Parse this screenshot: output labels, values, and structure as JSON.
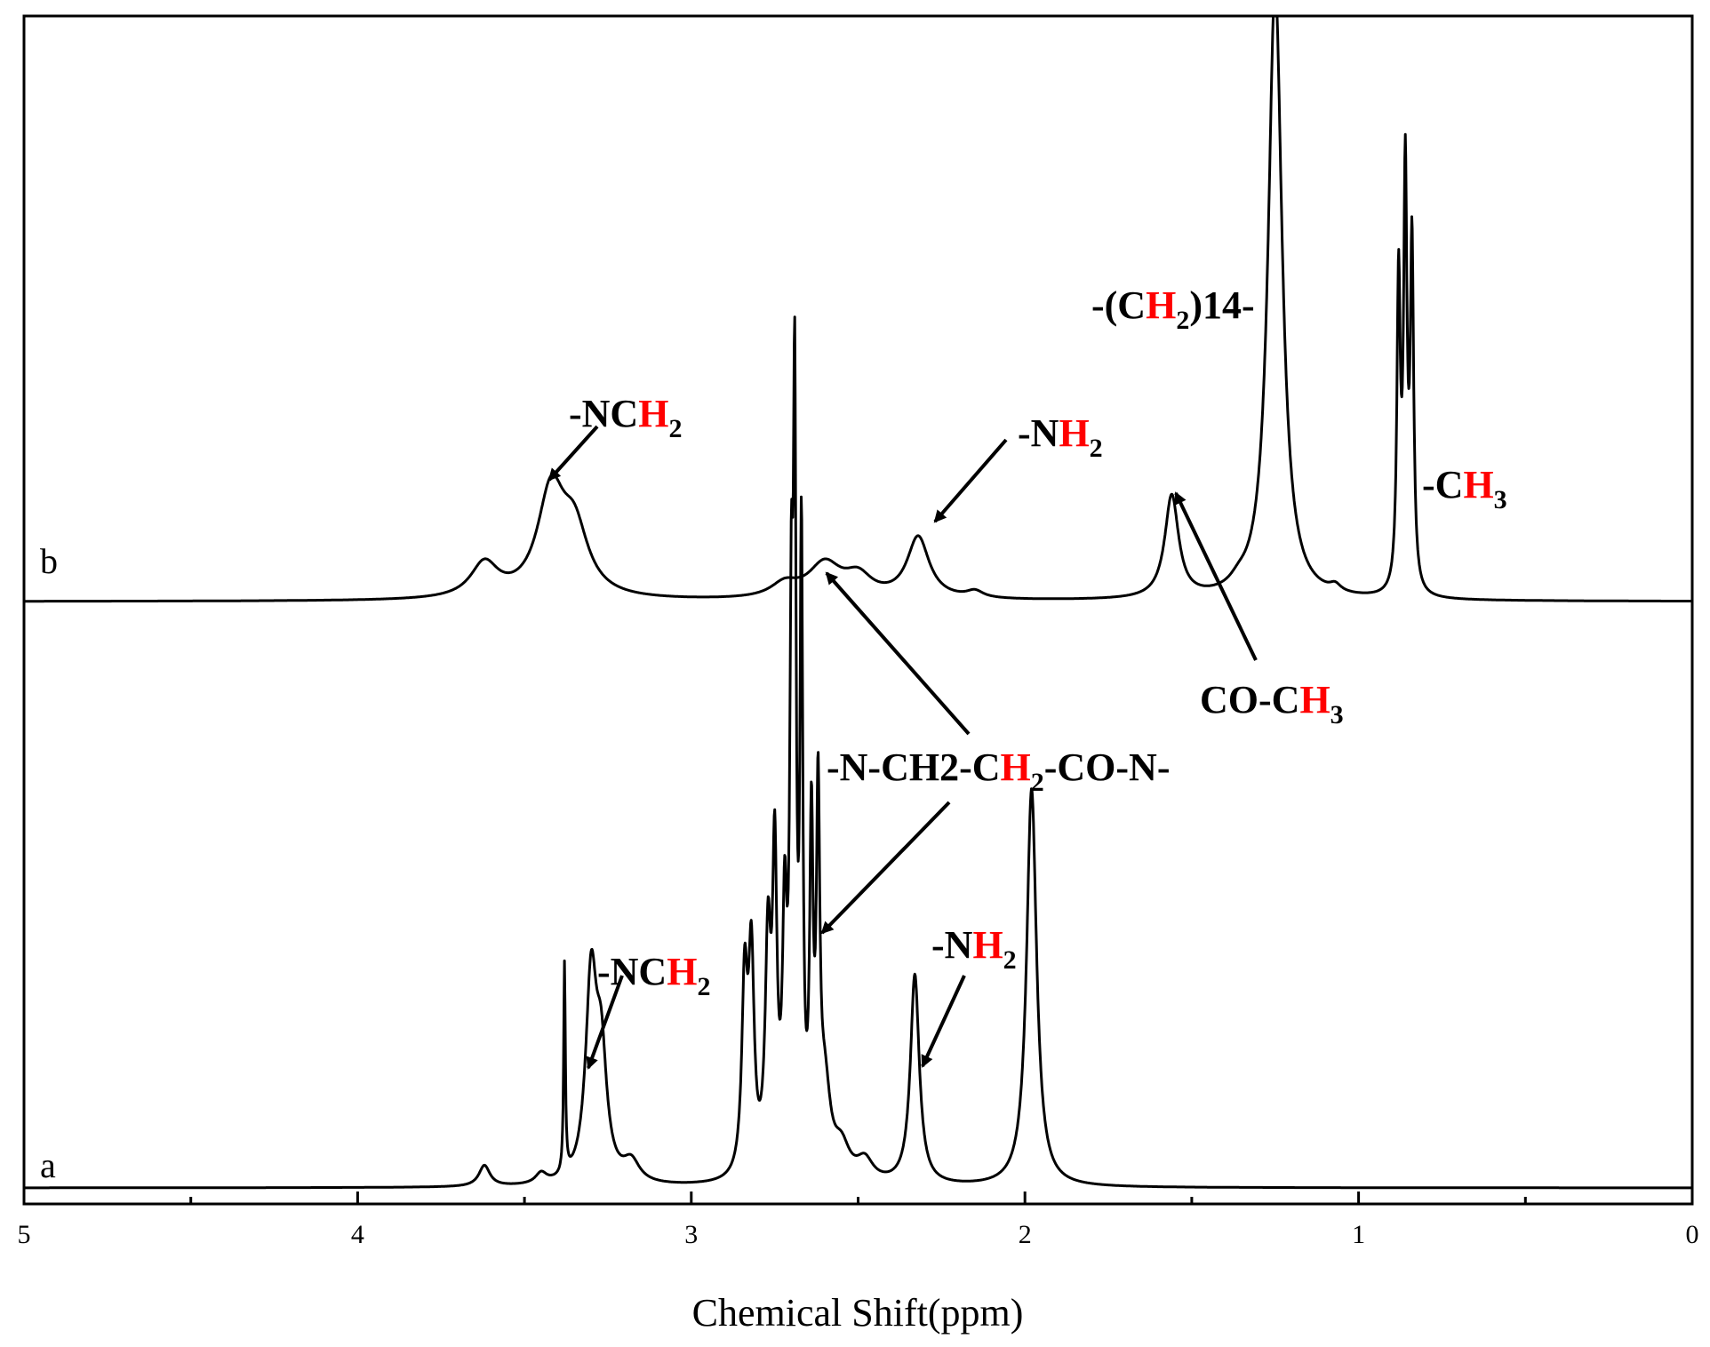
{
  "chart_data": {
    "type": "line",
    "title": "",
    "xlabel": "Chemical Shift(ppm)",
    "ylabel": "",
    "xlim": [
      5,
      0
    ],
    "x_ticks": [
      "5",
      "4",
      "3",
      "2",
      "1",
      "0"
    ],
    "grid": false,
    "legend": "none",
    "series": [
      {
        "name": "a",
        "baseline_ppm_region": [
          5,
          0
        ],
        "peaks": [
          {
            "ppm": 3.62,
            "height": 0.02,
            "width": 0.02
          },
          {
            "ppm": 3.45,
            "height": 0.01,
            "width": 0.02
          },
          {
            "ppm": 3.38,
            "height": 0.2,
            "width": 0.003
          },
          {
            "ppm": 3.3,
            "height": 0.19,
            "width": 0.02
          },
          {
            "ppm": 3.27,
            "height": 0.11,
            "width": 0.02
          },
          {
            "ppm": 3.18,
            "height": 0.02,
            "width": 0.03
          },
          {
            "ppm": 2.84,
            "height": 0.18,
            "width": 0.01
          },
          {
            "ppm": 2.82,
            "height": 0.2,
            "width": 0.01
          },
          {
            "ppm": 2.77,
            "height": 0.21,
            "width": 0.01
          },
          {
            "ppm": 2.75,
            "height": 0.28,
            "width": 0.008
          },
          {
            "ppm": 2.72,
            "height": 0.22,
            "width": 0.008
          },
          {
            "ppm": 2.7,
            "height": 0.45,
            "width": 0.006
          },
          {
            "ppm": 2.69,
            "height": 0.64,
            "width": 0.005
          },
          {
            "ppm": 2.67,
            "height": 0.57,
            "width": 0.005
          },
          {
            "ppm": 2.64,
            "height": 0.31,
            "width": 0.006
          },
          {
            "ppm": 2.62,
            "height": 0.33,
            "width": 0.006
          },
          {
            "ppm": 2.6,
            "height": 0.08,
            "width": 0.02
          },
          {
            "ppm": 2.55,
            "height": 0.03,
            "width": 0.03
          },
          {
            "ppm": 2.48,
            "height": 0.02,
            "width": 0.03
          },
          {
            "ppm": 2.33,
            "height": 0.2,
            "width": 0.016
          },
          {
            "ppm": 1.98,
            "height": 0.38,
            "width": 0.018
          }
        ]
      },
      {
        "name": "b",
        "peaks": [
          {
            "ppm": 3.62,
            "height": 0.05,
            "width": 0.05
          },
          {
            "ppm": 3.42,
            "height": 0.15,
            "width": 0.05
          },
          {
            "ppm": 3.35,
            "height": 0.09,
            "width": 0.05
          },
          {
            "ppm": 2.72,
            "height": 0.02,
            "width": 0.05
          },
          {
            "ppm": 2.6,
            "height": 0.05,
            "width": 0.06
          },
          {
            "ppm": 2.5,
            "height": 0.03,
            "width": 0.05
          },
          {
            "ppm": 2.32,
            "height": 0.09,
            "width": 0.04
          },
          {
            "ppm": 2.15,
            "height": 0.01,
            "width": 0.03
          },
          {
            "ppm": 1.56,
            "height": 0.15,
            "width": 0.025
          },
          {
            "ppm": 1.36,
            "height": 0.01,
            "width": 0.03
          },
          {
            "ppm": 1.25,
            "height": 0.9,
            "width": 0.025
          },
          {
            "ppm": 1.07,
            "height": 0.01,
            "width": 0.02
          },
          {
            "ppm": 0.88,
            "height": 0.45,
            "width": 0.006
          },
          {
            "ppm": 0.86,
            "height": 0.6,
            "width": 0.006
          },
          {
            "ppm": 0.84,
            "height": 0.5,
            "width": 0.006
          }
        ]
      }
    ],
    "annotations": [
      {
        "base": "-NC",
        "highlight": "H",
        "sub": "2",
        "suffix": ""
      },
      {
        "base": "-N",
        "highlight": "H",
        "sub": "2",
        "suffix": ""
      },
      {
        "base": "-(C",
        "highlight": "H",
        "sub": "2",
        "suffix": ")14-"
      },
      {
        "base": "-C",
        "highlight": "H",
        "sub": "3",
        "suffix": ""
      },
      {
        "base": "CO-C",
        "highlight": "H",
        "sub": "3",
        "suffix": ""
      },
      {
        "base": "-N-CH2-C",
        "highlight": "H",
        "sub": "2",
        "suffix": "-CO-N-"
      },
      {
        "base": "-NC",
        "highlight": "H",
        "sub": "2",
        "suffix": ""
      },
      {
        "base": "-N",
        "highlight": "H",
        "sub": "2",
        "suffix": ""
      }
    ],
    "colors": {
      "line": "#000000",
      "highlight": "#ff0000"
    }
  }
}
